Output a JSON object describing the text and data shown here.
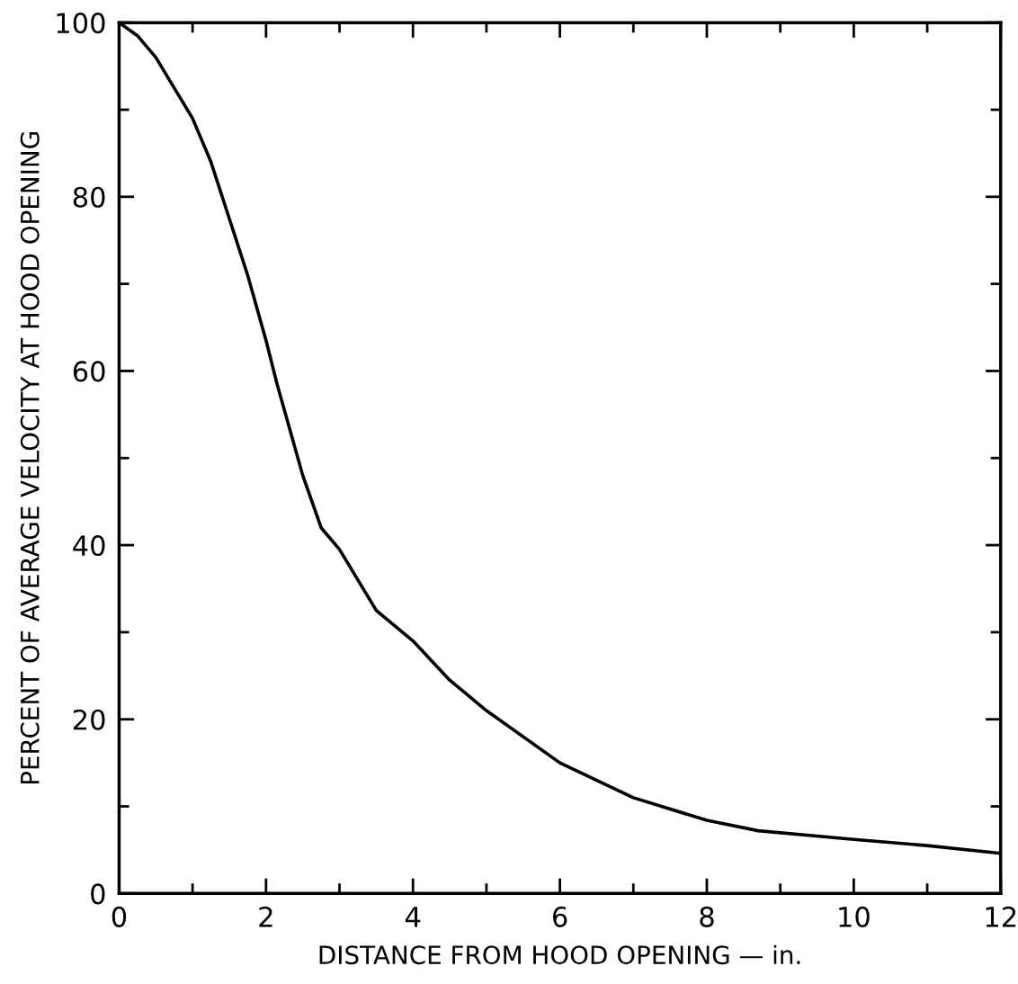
{
  "chart_data": {
    "type": "line",
    "xlabel": "DISTANCE FROM HOOD OPENING — in.",
    "ylabel": "PERCENT OF AVERAGE VELOCITY AT HOOD OPENING",
    "x": [
      0,
      0.25,
      0.5,
      1,
      1.25,
      1.5,
      1.75,
      2,
      2.15,
      2.5,
      2.75,
      3,
      3.5,
      4,
      4.5,
      5,
      6,
      7,
      8,
      8.7,
      10,
      11,
      12
    ],
    "values": [
      100,
      98.5,
      96,
      89,
      84,
      77.5,
      71,
      63.5,
      58.5,
      48,
      42,
      39.5,
      32.5,
      29,
      24.5,
      21,
      15,
      11,
      8.4,
      7.2,
      6.2,
      5.5,
      4.6
    ],
    "color": "#000000",
    "xlim": [
      0,
      12
    ],
    "ylim": [
      0,
      100
    ],
    "xticks": [
      0,
      {
        "value": 1,
        "label": null
      },
      2,
      {
        "value": 3,
        "label": null
      },
      4,
      {
        "value": 5,
        "label": null
      },
      6,
      {
        "value": 7,
        "label": null
      },
      8,
      {
        "value": 9,
        "label": null
      },
      10,
      {
        "value": 11,
        "label": null
      },
      12
    ],
    "yticks": [
      0,
      {
        "value": 10,
        "label": null
      },
      20,
      {
        "value": 30,
        "label": null
      },
      40,
      {
        "value": 50,
        "label": null
      },
      60,
      {
        "value": 70,
        "label": null
      },
      80,
      {
        "value": 90,
        "label": null
      },
      100
    ],
    "grid": false,
    "marker": "none",
    "line_style": "solid",
    "legend": false
  }
}
